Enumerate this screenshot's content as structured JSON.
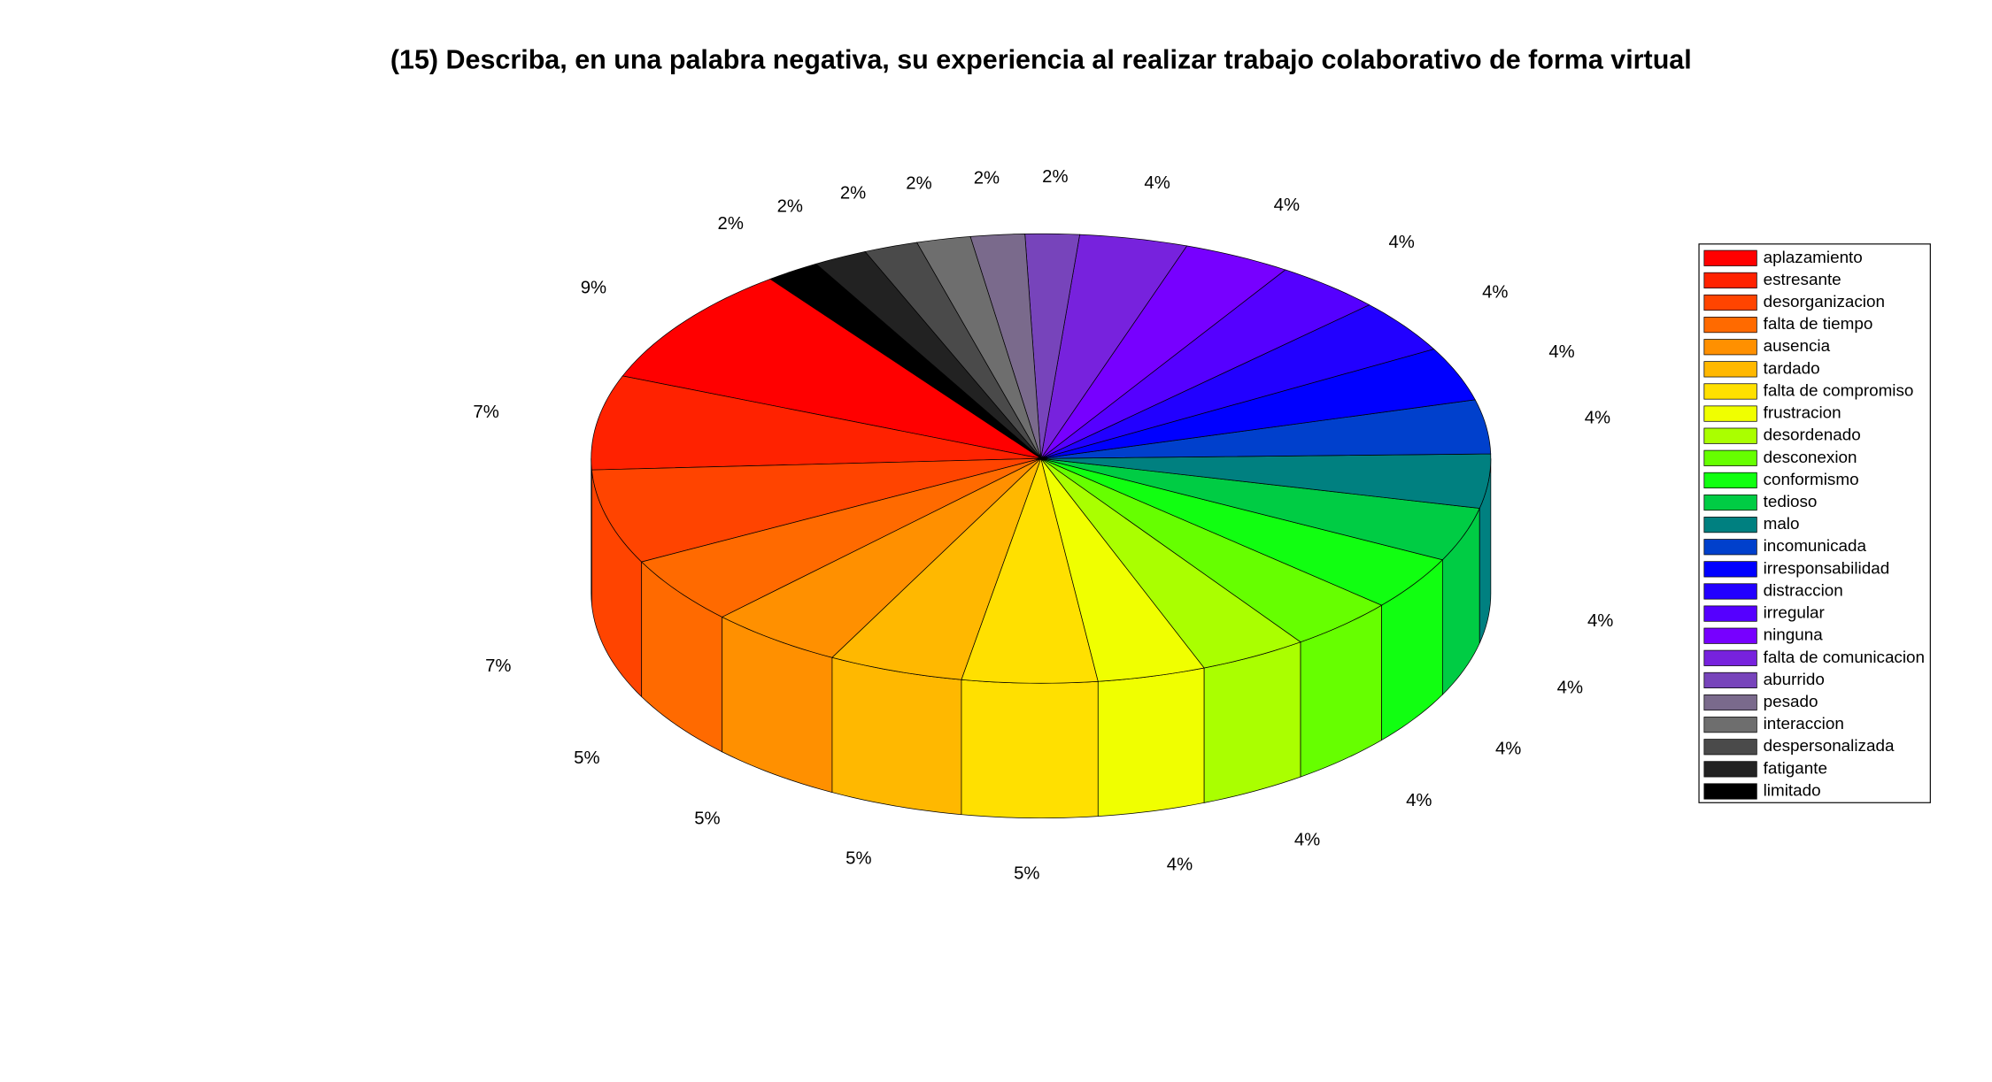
{
  "chart_data": {
    "type": "pie3d",
    "title": "(15) Describa, en una palabra negativa, su experiencia al realizar trabajo colaborativo de forma virtual",
    "categories": [
      "aplazamiento",
      "estresante",
      "desorganizacion",
      "falta de tiempo",
      "ausencia",
      "tardado",
      "falta de compromiso",
      "frustracion",
      "desordenado",
      "desconexion",
      "conformismo",
      "tedioso",
      "malo",
      "incomunicada",
      "irresponsabilidad",
      "distraccion",
      "irregular",
      "ninguna",
      "falta de comunicacion",
      "aburrido",
      "pesado",
      "interaccion",
      "despersonalizada",
      "fatigante",
      "limitado"
    ],
    "values": [
      9,
      7,
      7,
      5,
      5,
      5,
      5,
      4,
      4,
      4,
      4,
      4,
      4,
      4,
      4,
      4,
      4,
      4,
      4,
      2,
      2,
      2,
      2,
      2,
      2
    ],
    "value_labels": [
      "9%",
      "7%",
      "7%",
      "5%",
      "5%",
      "5%",
      "5%",
      "4%",
      "4%",
      "4%",
      "4%",
      "4%",
      "4%",
      "4%",
      "4%",
      "4%",
      "4%",
      "4%",
      "4%",
      "2%",
      "2%",
      "2%",
      "2%",
      "2%",
      "2%"
    ],
    "colors": [
      "#ff0000",
      "#ff2200",
      "#ff4400",
      "#ff6a00",
      "#ff9000",
      "#ffb800",
      "#ffe000",
      "#f0ff00",
      "#aaff00",
      "#66ff00",
      "#11ff11",
      "#00cc44",
      "#008080",
      "#0040cc",
      "#0000ff",
      "#2200ff",
      "#5500ff",
      "#7700ff",
      "#7722dd",
      "#7744bb",
      "#7a6a8c",
      "#6e6e6e",
      "#4a4a4a",
      "#222222",
      "#000000"
    ],
    "legend": "right"
  }
}
